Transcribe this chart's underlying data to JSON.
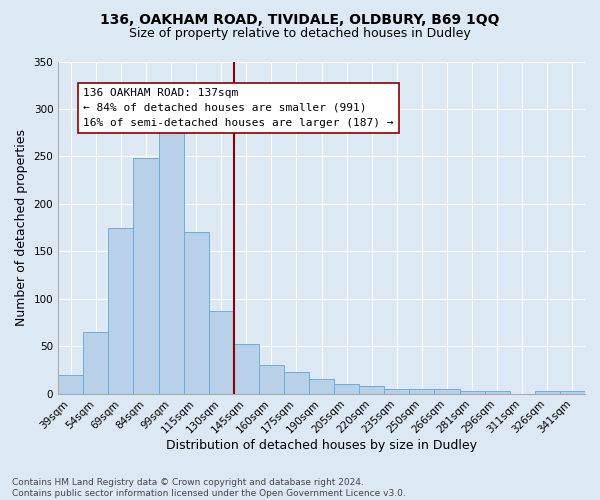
{
  "title1": "136, OAKHAM ROAD, TIVIDALE, OLDBURY, B69 1QQ",
  "title2": "Size of property relative to detached houses in Dudley",
  "xlabel": "Distribution of detached houses by size in Dudley",
  "ylabel": "Number of detached properties",
  "footer": "Contains HM Land Registry data © Crown copyright and database right 2024.\nContains public sector information licensed under the Open Government Licence v3.0.",
  "categories": [
    "39sqm",
    "54sqm",
    "69sqm",
    "84sqm",
    "99sqm",
    "115sqm",
    "130sqm",
    "145sqm",
    "160sqm",
    "175sqm",
    "190sqm",
    "205sqm",
    "220sqm",
    "235sqm",
    "250sqm",
    "266sqm",
    "281sqm",
    "296sqm",
    "311sqm",
    "326sqm",
    "341sqm"
  ],
  "values": [
    20,
    65,
    175,
    248,
    283,
    170,
    87,
    52,
    30,
    23,
    15,
    10,
    8,
    5,
    5,
    5,
    3,
    3,
    0,
    3,
    3
  ],
  "bar_color": "#b8d0e8",
  "bar_edge_color": "#6baed6",
  "property_label": "136 OAKHAM ROAD: 137sqm",
  "annotation_line1": "← 84% of detached houses are smaller (991)",
  "annotation_line2": "16% of semi-detached houses are larger (187) →",
  "vline_color": "#8b0000",
  "annotation_box_color": "#ffffff",
  "annotation_box_edge": "#8b0000",
  "vline_index": 6.5,
  "ylim": [
    0,
    350
  ],
  "background_color": "#dce9f5",
  "grid_color": "#ffffff",
  "title_fontsize": 10,
  "subtitle_fontsize": 9,
  "tick_fontsize": 7.5,
  "ylabel_fontsize": 9,
  "xlabel_fontsize": 9,
  "footer_fontsize": 6.5,
  "annotation_fontsize": 8
}
